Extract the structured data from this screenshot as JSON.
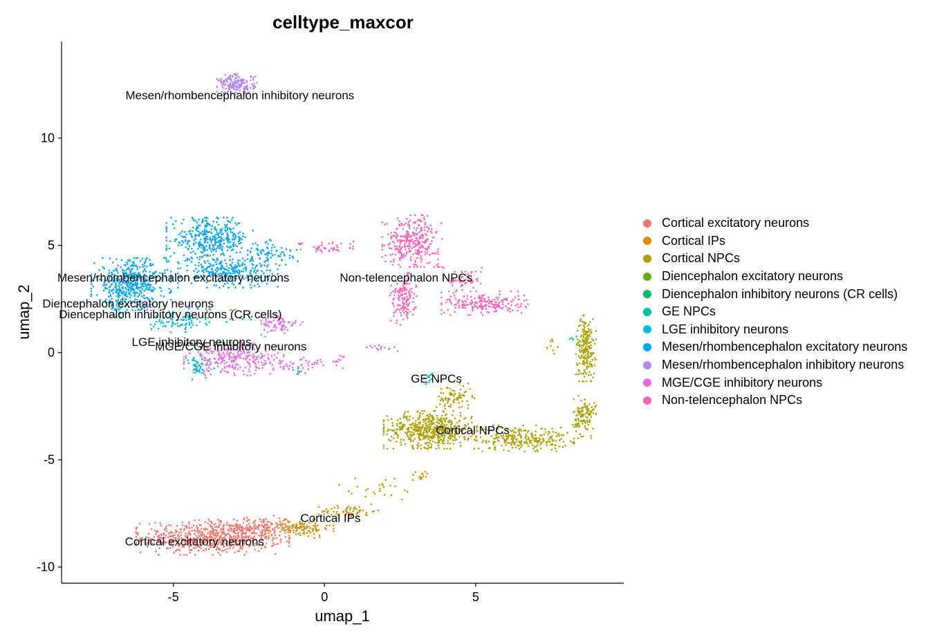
{
  "chart_data": {
    "type": "scatter",
    "title": "celltype_maxcor",
    "xlabel": "umap_1",
    "ylabel": "umap_2",
    "xlim": [
      -8.7,
      9.9
    ],
    "ylim": [
      -10.75,
      14.5
    ],
    "x_ticks": [
      -5,
      0,
      5
    ],
    "y_ticks": [
      -10,
      -5,
      0,
      5,
      10
    ],
    "x_tick_labels": [
      "-5",
      "0",
      "5"
    ],
    "y_tick_labels": [
      "-10",
      "-5",
      "0",
      "5",
      "10"
    ],
    "grid": false,
    "legend_position": "right",
    "series": [
      {
        "name": "Cortical excitatory neurons",
        "color": "#F8766D",
        "clusters": [
          {
            "cx": -3.7,
            "cy": -8.6,
            "rx": 2.3,
            "ry": 0.75,
            "n": 650
          },
          {
            "cx": -2.2,
            "cy": -8.2,
            "rx": 1.4,
            "ry": 0.55,
            "n": 120
          }
        ]
      },
      {
        "name": "Cortical IPs",
        "color": "#DB8E00",
        "clusters": [
          {
            "cx": -0.8,
            "cy": -8.2,
            "rx": 1.0,
            "ry": 0.4,
            "n": 110
          },
          {
            "cx": 0.8,
            "cy": -7.4,
            "rx": 0.9,
            "ry": 0.3,
            "n": 60
          },
          {
            "cx": 3.2,
            "cy": -5.7,
            "rx": 0.3,
            "ry": 0.3,
            "n": 15
          },
          {
            "cx": 7.5,
            "cy": 0.3,
            "rx": 0.2,
            "ry": 0.4,
            "n": 10
          }
        ]
      },
      {
        "name": "Cortical NPCs",
        "color": "#AEA200",
        "clusters": [
          {
            "cx": 3.5,
            "cy": -3.6,
            "rx": 1.4,
            "ry": 0.8,
            "n": 550
          },
          {
            "cx": 4.3,
            "cy": -2.1,
            "rx": 0.6,
            "ry": 0.6,
            "n": 80
          },
          {
            "cx": 6.5,
            "cy": -4.0,
            "rx": 1.6,
            "ry": 0.55,
            "n": 260
          },
          {
            "cx": 8.6,
            "cy": -3.0,
            "rx": 0.35,
            "ry": 0.9,
            "n": 120
          },
          {
            "cx": 8.65,
            "cy": 0.2,
            "rx": 0.3,
            "ry": 1.4,
            "n": 220
          },
          {
            "cx": 1.8,
            "cy": -6.3,
            "rx": 1.6,
            "ry": 0.55,
            "n": 25
          }
        ]
      },
      {
        "name": "Diencephalon excitatory neurons",
        "color": "#64B200",
        "clusters": [
          {
            "cx": -3.5,
            "cy": 2.0,
            "rx": 0.5,
            "ry": 0.3,
            "n": 6
          }
        ]
      },
      {
        "name": "Diencephalon inhibitory neurons (CR cells)",
        "color": "#00BD5C",
        "clusters": [
          {
            "cx": -2.8,
            "cy": 1.5,
            "rx": 0.5,
            "ry": 0.3,
            "n": 6
          }
        ]
      },
      {
        "name": "GE NPCs",
        "color": "#00C1A7",
        "clusters": [
          {
            "cx": 3.5,
            "cy": -1.2,
            "rx": 0.25,
            "ry": 0.25,
            "n": 12
          },
          {
            "cx": -0.9,
            "cy": -0.9,
            "rx": 0.3,
            "ry": 0.3,
            "n": 8
          },
          {
            "cx": 8.2,
            "cy": 0.6,
            "rx": 0.25,
            "ry": 0.25,
            "n": 6
          }
        ]
      },
      {
        "name": "LGE inhibitory neurons",
        "color": "#00BADE",
        "clusters": [
          {
            "cx": -4.8,
            "cy": 1.5,
            "rx": 0.9,
            "ry": 0.5,
            "n": 90
          },
          {
            "cx": -4.2,
            "cy": -0.7,
            "rx": 0.5,
            "ry": 0.6,
            "n": 50
          },
          {
            "cx": -6.8,
            "cy": 2.0,
            "rx": 0.4,
            "ry": 0.6,
            "n": 20
          }
        ]
      },
      {
        "name": "Mesen/rhombencephalon excitatory neurons",
        "color": "#00A6FF",
        "clusters": [
          {
            "cx": -6.4,
            "cy": 3.2,
            "rx": 1.2,
            "ry": 1.1,
            "n": 480
          },
          {
            "cx": -3.8,
            "cy": 5.3,
            "rx": 1.3,
            "ry": 0.9,
            "n": 360
          },
          {
            "cx": -3.2,
            "cy": 3.8,
            "rx": 1.5,
            "ry": 0.7,
            "n": 280
          },
          {
            "cx": -1.8,
            "cy": 4.6,
            "rx": 0.9,
            "ry": 0.6,
            "n": 80
          }
        ]
      },
      {
        "name": "Mesen/rhombencephalon inhibitory neurons",
        "color": "#B385FF",
        "clusters": [
          {
            "cx": -2.9,
            "cy": 12.5,
            "rx": 0.6,
            "ry": 0.45,
            "n": 170
          }
        ]
      },
      {
        "name": "MGE/CGE inhibitory neurons",
        "color": "#EF67EB",
        "clusters": [
          {
            "cx": -3.0,
            "cy": -0.3,
            "rx": 1.5,
            "ry": 0.7,
            "n": 260
          },
          {
            "cx": -1.5,
            "cy": 1.3,
            "rx": 0.7,
            "ry": 0.5,
            "n": 70
          },
          {
            "cx": -0.8,
            "cy": -0.6,
            "rx": 0.9,
            "ry": 0.4,
            "n": 40
          },
          {
            "cx": 0.5,
            "cy": -0.4,
            "rx": 0.4,
            "ry": 0.3,
            "n": 12
          }
        ]
      },
      {
        "name": "Non-telencephalon NPCs",
        "color": "#FF63B6",
        "clusters": [
          {
            "cx": 2.9,
            "cy": 5.2,
            "rx": 0.9,
            "ry": 1.1,
            "n": 320
          },
          {
            "cx": 2.6,
            "cy": 2.5,
            "rx": 0.4,
            "ry": 1.1,
            "n": 140
          },
          {
            "cx": 5.3,
            "cy": 2.3,
            "rx": 1.3,
            "ry": 0.5,
            "n": 200
          },
          {
            "cx": 4.6,
            "cy": 3.4,
            "rx": 0.6,
            "ry": 0.5,
            "n": 60
          },
          {
            "cx": 0.2,
            "cy": 4.9,
            "rx": 0.9,
            "ry": 0.35,
            "n": 45
          },
          {
            "cx": 2.0,
            "cy": 0.2,
            "rx": 0.6,
            "ry": 0.2,
            "n": 15
          }
        ]
      }
    ],
    "annotations": [
      {
        "text": "Mesen/rhombencephalon inhibitory neurons",
        "x": -2.8,
        "y": 12.0
      },
      {
        "text": "Non-telencephalon NPCs",
        "x": 2.7,
        "y": 3.5
      },
      {
        "text": "Mesen/rhombencephalon excitatory neurons",
        "x": -5.0,
        "y": 3.5
      },
      {
        "text": "Diencephalon excitatory neurons",
        "x": -6.5,
        "y": 2.3
      },
      {
        "text": "Diencephalon inhibitory neurons (CR cells)",
        "x": -5.1,
        "y": 1.8
      },
      {
        "text": "LGE inhibitory neurons",
        "x": -4.4,
        "y": 0.5
      },
      {
        "text": "MGE/CGE inhibitory neurons",
        "x": -3.1,
        "y": 0.3
      },
      {
        "text": "GE NPCs",
        "x": 3.7,
        "y": -1.2
      },
      {
        "text": "Cortical NPCs",
        "x": 4.9,
        "y": -3.6
      },
      {
        "text": "Cortical IPs",
        "x": 0.2,
        "y": -7.7
      },
      {
        "text": "Cortical excitatory neurons",
        "x": -4.3,
        "y": -8.8
      }
    ]
  }
}
